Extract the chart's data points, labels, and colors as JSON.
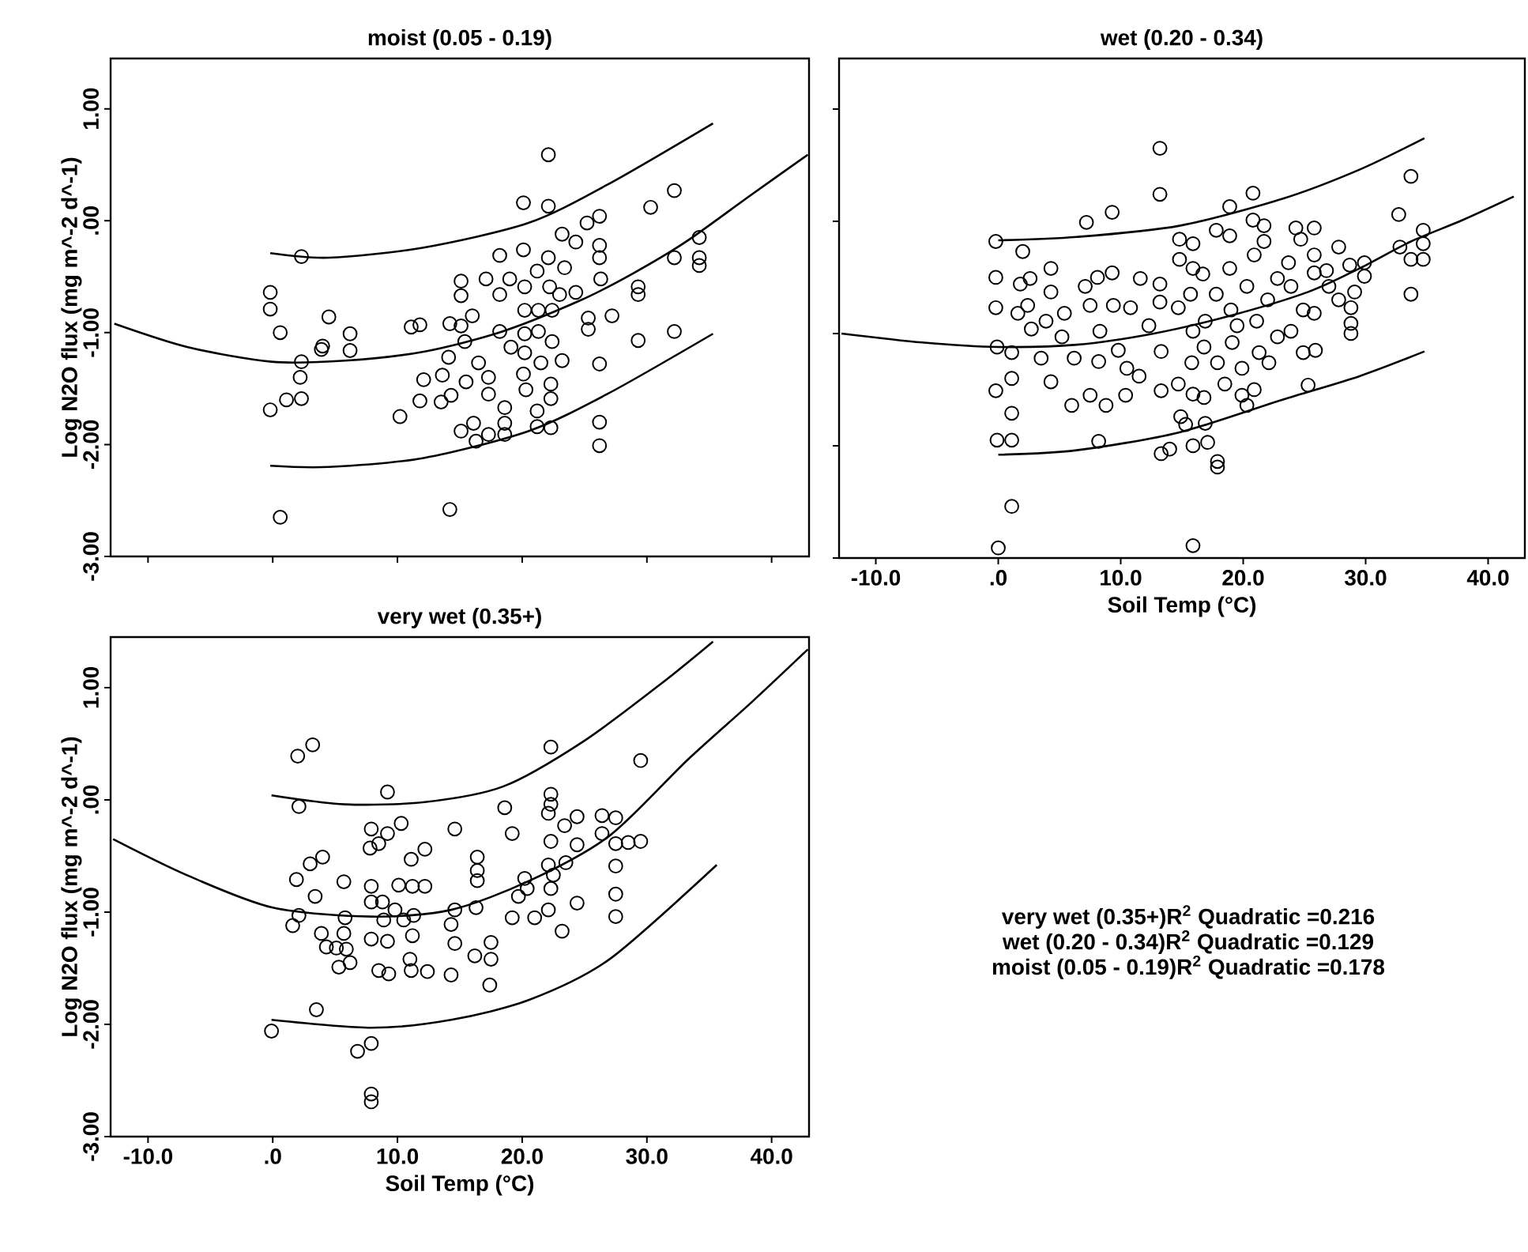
{
  "chart_data": [
    {
      "type": "scatter",
      "title": "moist (0.05 - 0.19)",
      "ylabel": "Log N2O flux (mg m^-2 d^-1)",
      "xlim": [
        -13,
        43
      ],
      "ylim": [
        -3,
        1.45
      ],
      "xticks": [
        {
          "value": -10,
          "label": null
        },
        {
          "value": 0,
          "label": null
        },
        {
          "value": 10,
          "label": null
        },
        {
          "value": 20,
          "label": null
        },
        {
          "value": 30,
          "label": null
        },
        {
          "value": 40,
          "label": null
        }
      ],
      "yticks": [
        {
          "value": -3,
          "label": "-3.00"
        },
        {
          "value": -2,
          "label": "-2.00"
        },
        {
          "value": -1,
          "label": "-1.00"
        },
        {
          "value": 0,
          "label": ".00"
        },
        {
          "value": 1,
          "label": "1.00"
        }
      ],
      "tick_labels": "y",
      "marker": "circle",
      "series": [
        {
          "type": "scatter",
          "color": "#000000",
          "x": [
            -0.2,
            -0.2,
            0.6,
            -0.2,
            1.1,
            2.3,
            2.3,
            2.3,
            2.2,
            0.6,
            4.5,
            4.0,
            3.9,
            6.2,
            6.2,
            10.2,
            11.1,
            11.8,
            11.8,
            12.1,
            13.5,
            14.2,
            14.2,
            14.1,
            13.6,
            14.3,
            15.1,
            15.1,
            15.1,
            15.4,
            15.5,
            15.1,
            16.1,
            16.3,
            16.0,
            16.5,
            17.1,
            17.3,
            17.3,
            17.3,
            18.2,
            18.2,
            18.2,
            18.6,
            18.6,
            18.6,
            19.0,
            19.1,
            20.1,
            20.1,
            20.2,
            20.2,
            20.2,
            20.2,
            20.1,
            20.3,
            21.2,
            21.2,
            21.2,
            21.3,
            21.3,
            21.5,
            22.1,
            22.1,
            22.1,
            22.2,
            22.4,
            22.4,
            22.3,
            22.3,
            22.3,
            23.0,
            23.2,
            23.2,
            23.4,
            24.3,
            24.3,
            25.2,
            25.3,
            25.3,
            26.2,
            26.2,
            26.2,
            26.3,
            26.2,
            26.2,
            26.2,
            27.2,
            29.3,
            29.3,
            29.3,
            30.3,
            32.2,
            32.2,
            32.2,
            34.2,
            34.2,
            34.2
          ],
          "values": [
            -0.64,
            -0.79,
            -1.0,
            -1.69,
            -1.6,
            -1.59,
            -0.32,
            -1.26,
            -1.4,
            -2.65,
            -0.86,
            -1.12,
            -1.15,
            -1.01,
            -1.16,
            -1.75,
            -0.95,
            -0.93,
            -1.61,
            -1.42,
            -1.62,
            -2.58,
            -0.92,
            -1.22,
            -1.38,
            -1.56,
            -0.54,
            -0.67,
            -0.94,
            -1.08,
            -1.44,
            -1.88,
            -1.81,
            -1.97,
            -0.85,
            -1.27,
            -0.52,
            -1.4,
            -1.55,
            -1.91,
            -0.31,
            -0.66,
            -0.99,
            -1.67,
            -1.81,
            -1.91,
            -0.52,
            -1.13,
            0.16,
            -0.26,
            -0.59,
            -0.8,
            -1.01,
            -1.18,
            -1.37,
            -1.51,
            -1.7,
            -1.84,
            -0.45,
            -0.8,
            -0.99,
            -1.27,
            0.59,
            0.13,
            -0.33,
            -0.59,
            -0.8,
            -1.08,
            -1.46,
            -1.59,
            -1.85,
            -0.66,
            -0.12,
            -1.25,
            -0.42,
            -0.19,
            -0.64,
            -0.02,
            -0.87,
            -0.97,
            0.04,
            -0.22,
            -0.33,
            -0.52,
            -1.28,
            -1.8,
            -2.01,
            -0.85,
            -0.59,
            -0.66,
            -1.07,
            0.12,
            0.27,
            -0.33,
            -0.99,
            -0.15,
            -0.33,
            -0.4
          ]
        },
        {
          "type": "line",
          "marker": "none",
          "color": "#000000",
          "x": [
            -12.7,
            -6.8,
            -0.1,
            5.8,
            12.1,
            18.4,
            24.7,
            28.9,
            33.1,
            38.1,
            42.9
          ],
          "values": [
            -0.92,
            -1.13,
            -1.26,
            -1.25,
            -1.17,
            -0.99,
            -0.71,
            -0.47,
            -0.19,
            0.21,
            0.59
          ]
        },
        {
          "type": "line",
          "marker": "none",
          "color": "#000000",
          "x": [
            -0.2,
            4.5,
            12.1,
            20.5,
            26.8,
            35.3
          ],
          "values": [
            -0.29,
            -0.33,
            -0.24,
            -0.02,
            0.32,
            0.87
          ]
        },
        {
          "type": "line",
          "marker": "none",
          "color": "#000000",
          "x": [
            -0.2,
            4.5,
            12.1,
            20.5,
            26.8,
            35.3
          ],
          "values": [
            -2.19,
            -2.2,
            -2.12,
            -1.88,
            -1.55,
            -1.01
          ]
        }
      ]
    },
    {
      "type": "scatter",
      "title": "wet (0.20 - 0.34)",
      "xlabel": "Soil Temp (°C)",
      "xlim": [
        -13,
        43
      ],
      "ylim": [
        -3,
        1.45
      ],
      "xticks": [
        {
          "value": -10,
          "label": "-10.0"
        },
        {
          "value": 0,
          "label": ".0"
        },
        {
          "value": 10,
          "label": "10.0"
        },
        {
          "value": 20,
          "label": "20.0"
        },
        {
          "value": 30,
          "label": "30.0"
        },
        {
          "value": 40,
          "label": "40.0"
        }
      ],
      "yticks": [
        {
          "value": -3,
          "label": null
        },
        {
          "value": -2,
          "label": null
        },
        {
          "value": -1,
          "label": null
        },
        {
          "value": 0,
          "label": null
        },
        {
          "value": 1,
          "label": null
        }
      ],
      "tick_labels": "x",
      "marker": "circle",
      "series": [
        {
          "type": "scatter",
          "color": "#000000",
          "x": [
            -0.2,
            -0.2,
            -0.2,
            -0.1,
            -0.2,
            -0.1,
            1.1,
            1.1,
            1.1,
            1.1,
            1.1,
            0,
            2.0,
            1.8,
            2.6,
            2.4,
            1.6,
            2.7,
            4.3,
            4.3,
            3.9,
            3.5,
            4.3,
            5.2,
            5.4,
            6.0,
            6.2,
            7.1,
            7.2,
            7.5,
            7.5,
            8.1,
            8.3,
            8.2,
            8.2,
            8.8,
            9.3,
            9.3,
            9.4,
            9.8,
            10.4,
            10.5,
            11.5,
            11.6,
            10.8,
            12.3,
            13.2,
            13.2,
            13.2,
            13.2,
            13.3,
            13.3,
            13.3,
            14.0,
            14.7,
            14.8,
            14.8,
            14.7,
            14.9,
            15.3,
            15.9,
            15.9,
            15.7,
            15.9,
            15.8,
            15.9,
            15.9,
            15.9,
            16.7,
            16.9,
            16.8,
            16.8,
            16.9,
            17.1,
            17.8,
            17.8,
            17.9,
            17.9,
            17.9,
            18.5,
            18.9,
            18.9,
            18.9,
            19.0,
            19.1,
            19.5,
            19.9,
            19.9,
            20.3,
            20.3,
            20.8,
            20.8,
            20.9,
            20.9,
            21.1,
            21.3,
            21.7,
            21.7,
            22.0,
            22.1,
            22.8,
            22.8,
            23.7,
            23.9,
            23.9,
            24.3,
            24.7,
            24.9,
            24.9,
            25.3,
            25.8,
            25.8,
            25.8,
            25.8,
            25.9,
            26.8,
            27.0,
            27.8,
            27.8,
            28.7,
            28.8,
            28.8,
            28.8,
            29.1,
            29.9,
            29.9,
            32.7,
            32.8,
            33.7,
            33.7,
            33.7,
            34.7,
            34.7,
            34.7
          ],
          "values": [
            -0.18,
            -0.5,
            -0.77,
            -1.12,
            -1.51,
            -1.95,
            -1.95,
            -1.71,
            -1.4,
            -1.17,
            -2.54,
            -2.91,
            -0.27,
            -0.56,
            -0.51,
            -0.75,
            -0.82,
            -0.96,
            -0.42,
            -0.63,
            -0.89,
            -1.22,
            -1.43,
            -1.03,
            -0.82,
            -1.64,
            -1.22,
            -0.58,
            -0.01,
            -0.75,
            -1.55,
            -0.5,
            -0.98,
            -1.25,
            -1.96,
            -1.64,
            0.08,
            -0.46,
            -0.75,
            -1.15,
            -1.55,
            -1.31,
            -1.38,
            -0.51,
            -0.77,
            -0.93,
            0.65,
            0.24,
            -0.56,
            -0.72,
            -1.16,
            -1.51,
            -2.07,
            -2.03,
            -1.45,
            -0.16,
            -0.34,
            -0.77,
            -1.74,
            -1.81,
            -0.2,
            -0.42,
            -0.65,
            -0.98,
            -1.26,
            -1.54,
            -2.0,
            -2.89,
            -0.47,
            -0.89,
            -1.12,
            -1.57,
            -1.8,
            -1.97,
            -0.08,
            -0.65,
            -1.26,
            -2.14,
            -2.19,
            -1.45,
            0.13,
            -0.13,
            -0.42,
            -0.79,
            -1.08,
            -0.93,
            -1.31,
            -1.55,
            -1.64,
            -0.58,
            0.25,
            0.01,
            -0.3,
            -1.5,
            -0.89,
            -1.17,
            -0.04,
            -0.18,
            -0.7,
            -1.26,
            -0.51,
            -1.03,
            -0.37,
            -0.58,
            -0.98,
            -0.06,
            -0.16,
            -0.79,
            -1.17,
            -1.46,
            -0.06,
            -0.3,
            -0.46,
            -0.82,
            -1.15,
            -0.44,
            -0.58,
            -0.23,
            -0.7,
            -0.39,
            -0.77,
            -0.91,
            -1.0,
            -0.63,
            -0.37,
            -0.49,
            0.06,
            -0.23,
            0.4,
            -0.34,
            -0.65,
            -0.08,
            -0.2,
            -0.34
          ]
        },
        {
          "type": "line",
          "marker": "none",
          "color": "#000000",
          "x": [
            -12.8,
            -6.2,
            0,
            6.4,
            12.7,
            19.0,
            25.3,
            29.5,
            33.7,
            37.9,
            42.1
          ],
          "values": [
            -1.0,
            -1.08,
            -1.12,
            -1.1,
            -1.0,
            -0.84,
            -0.63,
            -0.42,
            -0.18,
            0.01,
            0.22
          ]
        },
        {
          "type": "line",
          "marker": "none",
          "color": "#000000",
          "x": [
            0,
            6.4,
            14.8,
            23.2,
            29.5,
            34.8
          ],
          "values": [
            -0.17,
            -0.14,
            -0.04,
            0.2,
            0.46,
            0.74
          ]
        },
        {
          "type": "line",
          "marker": "none",
          "color": "#000000",
          "x": [
            0,
            6.4,
            14.8,
            23.2,
            29.5,
            34.8
          ],
          "values": [
            -2.08,
            -2.04,
            -1.88,
            -1.59,
            -1.38,
            -1.16
          ]
        }
      ]
    },
    {
      "type": "scatter",
      "title": "very wet (0.35+)",
      "xlabel": "Soil Temp (°C)",
      "ylabel": "Log N2O flux (mg m^-2 d^-1)",
      "xlim": [
        -13,
        43
      ],
      "ylim": [
        -3,
        1.45
      ],
      "xticks": [
        {
          "value": -10,
          "label": "-10.0"
        },
        {
          "value": 0,
          "label": ".0"
        },
        {
          "value": 10,
          "label": "10.0"
        },
        {
          "value": 20,
          "label": "20.0"
        },
        {
          "value": 30,
          "label": "30.0"
        },
        {
          "value": 40,
          "label": "40.0"
        }
      ],
      "yticks": [
        {
          "value": -3,
          "label": "-3.00"
        },
        {
          "value": -2,
          "label": "-2.00"
        },
        {
          "value": -1,
          "label": "-1.00"
        },
        {
          "value": 0,
          "label": ".00"
        },
        {
          "value": 1,
          "label": "1.00"
        }
      ],
      "marker": "circle",
      "series": [
        {
          "type": "scatter",
          "color": "#000000",
          "x": [
            2.0,
            3.2,
            2.1,
            1.9,
            3.0,
            4.0,
            2.1,
            1.6,
            3.4,
            3.9,
            4.3,
            3.5,
            -0.1,
            5.7,
            5.8,
            5.7,
            5.1,
            5.3,
            6.2,
            5.9,
            6.8,
            7.9,
            7.9,
            7.9,
            7.9,
            7.8,
            7.9,
            7.9,
            7.9,
            8.5,
            8.5,
            9.2,
            9.2,
            8.8,
            8.9,
            9.2,
            9.3,
            9.8,
            10.3,
            10.1,
            10.5,
            11.1,
            11.2,
            11.3,
            11.2,
            11.0,
            11.1,
            12.2,
            12.2,
            12.4,
            14.3,
            14.6,
            14.6,
            14.3,
            14.6,
            16.4,
            16.4,
            16.4,
            16.3,
            16.2,
            17.5,
            17.5,
            17.4,
            18.6,
            19.2,
            19.2,
            19.7,
            20.2,
            20.4,
            21.0,
            22.3,
            22.3,
            22.3,
            22.1,
            22.3,
            22.1,
            22.3,
            22.1,
            22.5,
            23.4,
            23.5,
            23.2,
            24.4,
            24.4,
            24.4,
            26.4,
            26.4,
            27.5,
            27.5,
            27.5,
            27.5,
            27.5,
            28.5,
            29.5,
            29.5
          ],
          "values": [
            0.39,
            0.49,
            -0.06,
            -0.71,
            -0.57,
            -0.51,
            -1.03,
            -1.12,
            -0.86,
            -1.19,
            -1.31,
            -1.87,
            -2.06,
            -0.73,
            -1.05,
            -1.19,
            -1.32,
            -1.49,
            -1.45,
            -1.33,
            -2.24,
            -2.17,
            -2.62,
            -2.69,
            -0.26,
            -0.43,
            -0.77,
            -0.91,
            -1.24,
            -1.52,
            -0.39,
            0.07,
            -0.3,
            -0.91,
            -1.07,
            -1.26,
            -1.55,
            -0.98,
            -0.21,
            -0.76,
            -1.07,
            -0.53,
            -0.77,
            -1.03,
            -1.21,
            -1.42,
            -1.52,
            -0.44,
            -0.77,
            -1.53,
            -1.56,
            -0.26,
            -0.98,
            -1.11,
            -1.28,
            -0.51,
            -0.63,
            -0.72,
            -0.96,
            -1.39,
            -1.27,
            -1.42,
            -1.65,
            -0.07,
            -0.3,
            -1.05,
            -0.86,
            -0.7,
            -0.79,
            -1.05,
            0.47,
            0.05,
            -0.04,
            -0.12,
            -0.37,
            -0.58,
            -0.79,
            -0.98,
            -0.67,
            -0.23,
            -0.56,
            -1.17,
            -0.15,
            -0.4,
            -0.92,
            -0.14,
            -0.3,
            -0.16,
            -0.39,
            -0.59,
            -0.84,
            -1.04,
            -0.38,
            0.35,
            -0.37
          ]
        },
        {
          "type": "line",
          "marker": "none",
          "color": "#000000",
          "x": [
            -12.8,
            -6.9,
            0,
            7.9,
            14.3,
            20.6,
            27.0,
            33.3,
            38.4,
            42.9
          ],
          "values": [
            -0.35,
            -0.67,
            -0.96,
            -1.04,
            -0.98,
            -0.72,
            -0.32,
            0.36,
            0.87,
            1.34
          ]
        },
        {
          "type": "line",
          "marker": "none",
          "color": "#000000",
          "x": [
            -0.1,
            5.8,
            12.2,
            18.5,
            24.9,
            31.2,
            35.3
          ],
          "values": [
            0.04,
            -0.04,
            -0.02,
            0.12,
            0.52,
            1.04,
            1.41
          ]
        },
        {
          "type": "line",
          "marker": "none",
          "color": "#000000",
          "x": [
            -0.1,
            7.9,
            14.3,
            20.6,
            27.0,
            35.6
          ],
          "values": [
            -1.96,
            -2.03,
            -1.96,
            -1.78,
            -1.42,
            -0.58
          ]
        }
      ]
    },
    {
      "type": "other",
      "annotations": [
        "very wet (0.35+)R$^{2}$ Quadratic =0.216",
        "wet (0.20 - 0.34)R$^{2}$ Quadratic =0.129",
        "moist (0.05 - 0.19)R$^{2}$ Quadratic =0.178"
      ]
    }
  ]
}
